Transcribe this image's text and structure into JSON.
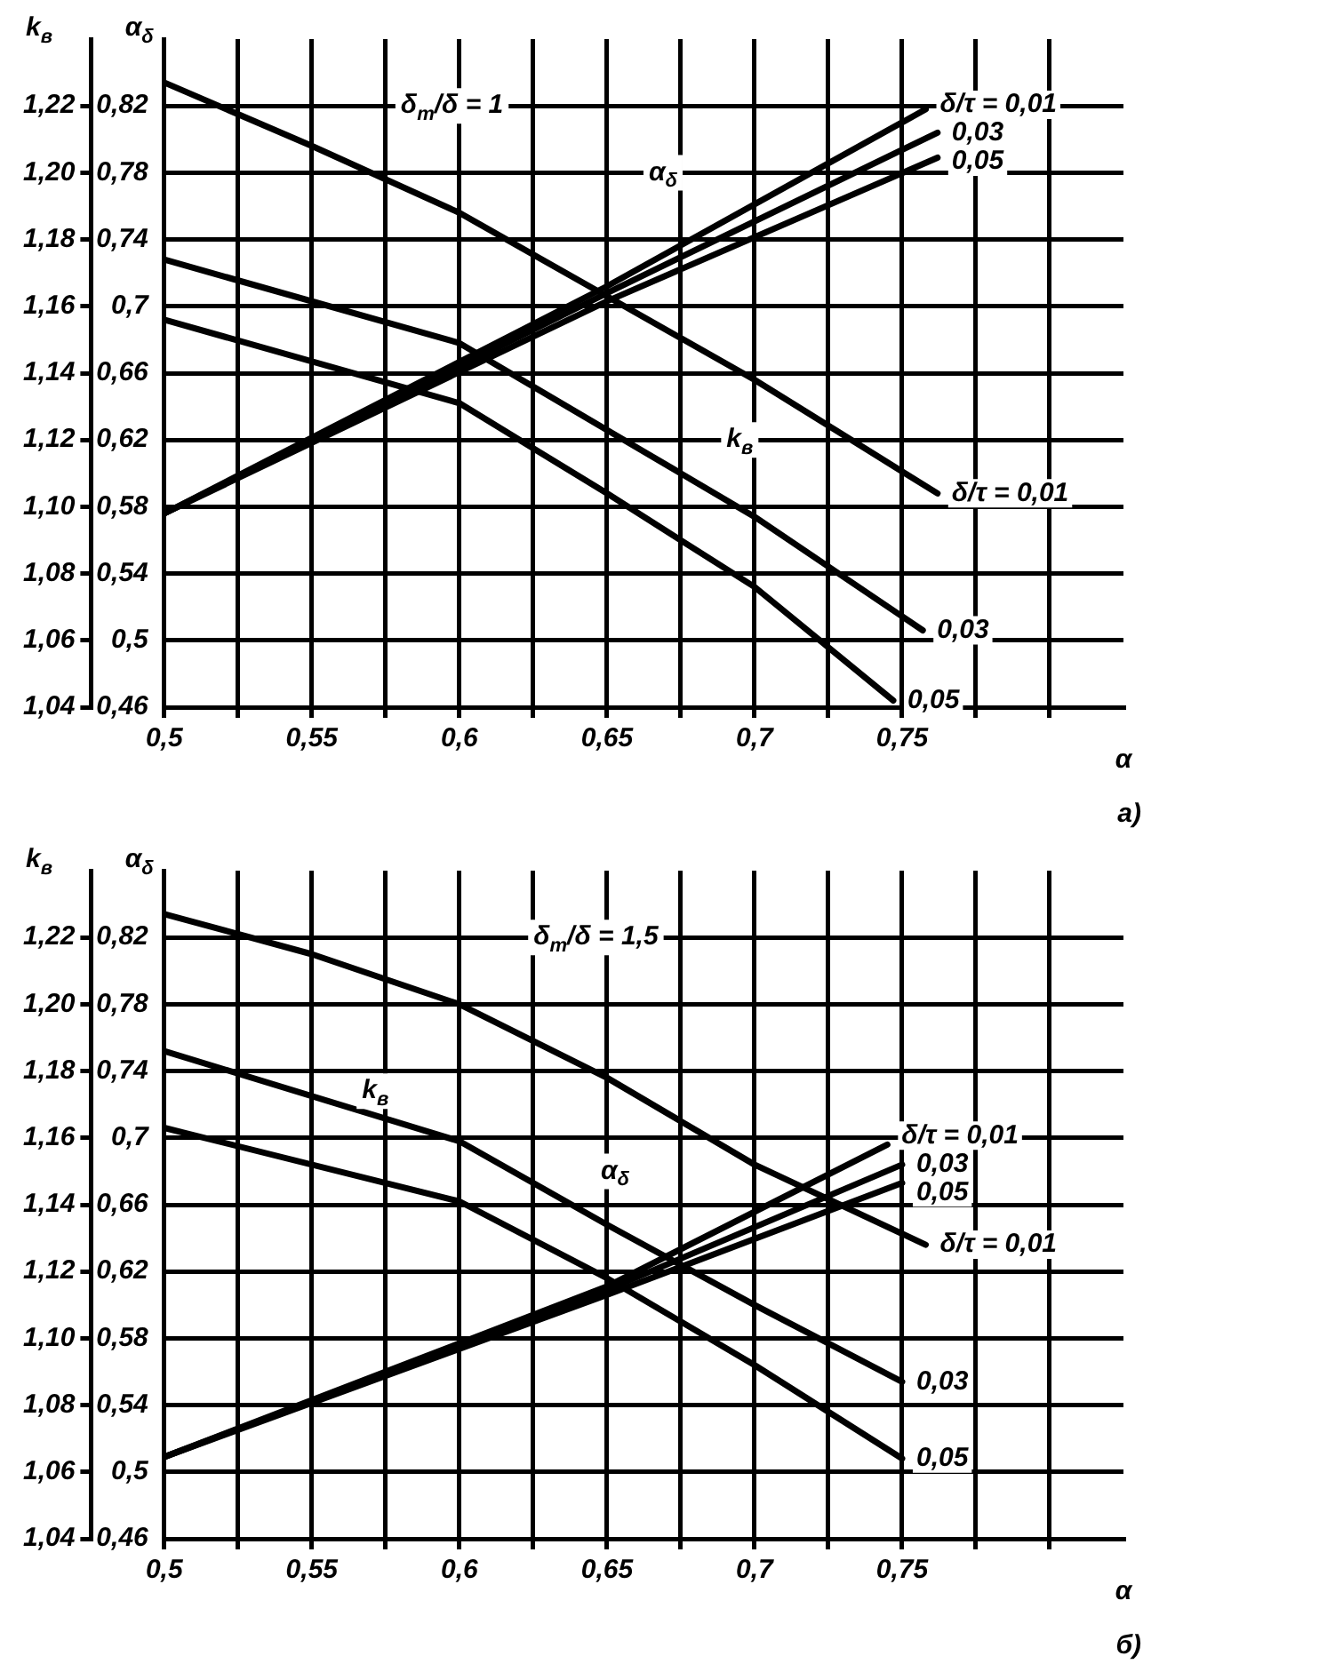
{
  "chart_data": [
    {
      "type": "line",
      "annotations": [
        "δ$_{m}$/δ = 1",
        "k$_{в}$",
        "α$_{δ}$",
        "а)"
      ],
      "xlabel": "α",
      "ylabel": "k$_{в}$",
      "y2label": "α$_{δ}$",
      "grid": true,
      "legend": false,
      "line_style": "solid",
      "xlim": [
        0.5,
        0.825
      ],
      "xticks": [
        {
          "value": 0.5,
          "label": "0,5"
        },
        {
          "value": 0.525,
          "label": null
        },
        {
          "value": 0.55,
          "label": "0,55"
        },
        {
          "value": 0.575,
          "label": null
        },
        {
          "value": 0.6,
          "label": "0,6"
        },
        {
          "value": 0.625,
          "label": null
        },
        {
          "value": 0.65,
          "label": "0,65"
        },
        {
          "value": 0.675,
          "label": null
        },
        {
          "value": 0.7,
          "label": "0,7"
        },
        {
          "value": 0.725,
          "label": null
        },
        {
          "value": 0.75,
          "label": "0,75"
        },
        {
          "value": 0.775,
          "label": null
        },
        {
          "value": 0.8,
          "label": null
        }
      ],
      "ylim": [
        1.04,
        1.24
      ],
      "yticks": [
        {
          "value": 1.04,
          "label": "1,04"
        },
        {
          "value": 1.06,
          "label": "1,06"
        },
        {
          "value": 1.08,
          "label": "1,08"
        },
        {
          "value": 1.1,
          "label": "1,10"
        },
        {
          "value": 1.12,
          "label": "1,12"
        },
        {
          "value": 1.14,
          "label": "1,14"
        },
        {
          "value": 1.16,
          "label": "1,16"
        },
        {
          "value": 1.18,
          "label": "1,18"
        },
        {
          "value": 1.2,
          "label": "1,20"
        },
        {
          "value": 1.22,
          "label": "1,22"
        }
      ],
      "y2lim": [
        0.46,
        0.86
      ],
      "y2ticks": [
        {
          "value": 0.46,
          "label": "0,46"
        },
        {
          "value": 0.5,
          "label": "0,5"
        },
        {
          "value": 0.54,
          "label": "0,54"
        },
        {
          "value": 0.58,
          "label": "0,58"
        },
        {
          "value": 0.62,
          "label": "0,62"
        },
        {
          "value": 0.66,
          "label": "0,66"
        },
        {
          "value": 0.7,
          "label": "0,7"
        },
        {
          "value": 0.74,
          "label": "0,74"
        },
        {
          "value": 0.78,
          "label": "0,78"
        },
        {
          "value": 0.82,
          "label": "0,82"
        }
      ],
      "series": [
        {
          "name": "δ/τ = 0,01",
          "color": "#000000",
          "x": [
            0.5,
            0.55,
            0.6,
            0.65,
            0.7,
            0.762
          ],
          "values": [
            1.227,
            1.208,
            1.188,
            1.163,
            1.138,
            1.104
          ]
        },
        {
          "name": "0,03",
          "color": "#000000",
          "x": [
            0.5,
            0.6,
            0.65,
            0.7,
            0.757
          ],
          "values": [
            1.174,
            1.149,
            1.123,
            1.097,
            1.063
          ]
        },
        {
          "name": "0,05",
          "color": "#000000",
          "x": [
            0.5,
            0.6,
            0.65,
            0.7,
            0.747
          ],
          "values": [
            1.156,
            1.131,
            1.104,
            1.076,
            1.042
          ]
        },
        {
          "name": "δ/τ = 0,01",
          "color": "#000000",
          "axis": "y2",
          "x": [
            0.5,
            0.65,
            0.758
          ],
          "values": [
            0.576,
            0.712,
            0.818
          ]
        },
        {
          "name": "0,03",
          "color": "#000000",
          "axis": "y2",
          "x": [
            0.5,
            0.65,
            0.762
          ],
          "values": [
            0.576,
            0.708,
            0.804
          ]
        },
        {
          "name": "0,05",
          "color": "#000000",
          "axis": "y2",
          "x": [
            0.5,
            0.65,
            0.762
          ],
          "values": [
            0.576,
            0.703,
            0.789
          ]
        }
      ]
    },
    {
      "type": "line",
      "annotations": [
        "δ$_{m}$/δ = 1,5",
        "k$_{в}$",
        "α$_{δ}$",
        "б)"
      ],
      "xlabel": "α",
      "ylabel": "k$_{в}$",
      "y2label": "α$_{δ}$",
      "grid": true,
      "legend": false,
      "line_style": "solid",
      "xlim": [
        0.5,
        0.825
      ],
      "xticks": [
        {
          "value": 0.5,
          "label": "0,5"
        },
        {
          "value": 0.525,
          "label": null
        },
        {
          "value": 0.55,
          "label": "0,55"
        },
        {
          "value": 0.575,
          "label": null
        },
        {
          "value": 0.6,
          "label": "0,6"
        },
        {
          "value": 0.625,
          "label": null
        },
        {
          "value": 0.65,
          "label": "0,65"
        },
        {
          "value": 0.675,
          "label": null
        },
        {
          "value": 0.7,
          "label": "0,7"
        },
        {
          "value": 0.725,
          "label": null
        },
        {
          "value": 0.75,
          "label": "0,75"
        },
        {
          "value": 0.775,
          "label": null
        },
        {
          "value": 0.8,
          "label": null
        }
      ],
      "ylim": [
        1.04,
        1.24
      ],
      "yticks": [
        {
          "value": 1.04,
          "label": "1,04"
        },
        {
          "value": 1.06,
          "label": "1,06"
        },
        {
          "value": 1.08,
          "label": "1,08"
        },
        {
          "value": 1.1,
          "label": "1,10"
        },
        {
          "value": 1.12,
          "label": "1,12"
        },
        {
          "value": 1.14,
          "label": "1,14"
        },
        {
          "value": 1.16,
          "label": "1,16"
        },
        {
          "value": 1.18,
          "label": "1,18"
        },
        {
          "value": 1.2,
          "label": "1,20"
        },
        {
          "value": 1.22,
          "label": "1,22"
        }
      ],
      "y2lim": [
        0.46,
        0.86
      ],
      "y2ticks": [
        {
          "value": 0.46,
          "label": "0,46"
        },
        {
          "value": 0.5,
          "label": "0,5"
        },
        {
          "value": 0.54,
          "label": "0,54"
        },
        {
          "value": 0.58,
          "label": "0,58"
        },
        {
          "value": 0.62,
          "label": "0,62"
        },
        {
          "value": 0.66,
          "label": "0,66"
        },
        {
          "value": 0.7,
          "label": "0,7"
        },
        {
          "value": 0.74,
          "label": "0,74"
        },
        {
          "value": 0.78,
          "label": "0,78"
        },
        {
          "value": 0.82,
          "label": "0,82"
        }
      ],
      "series": [
        {
          "name": "δ/τ = 0,01",
          "color": "#000000",
          "x": [
            0.5,
            0.55,
            0.6,
            0.65,
            0.7,
            0.758
          ],
          "values": [
            1.227,
            1.215,
            1.2,
            1.178,
            1.152,
            1.128
          ]
        },
        {
          "name": "0,03",
          "color": "#000000",
          "x": [
            0.5,
            0.6,
            0.65,
            0.7,
            0.75
          ],
          "values": [
            1.186,
            1.159,
            1.134,
            1.11,
            1.087
          ]
        },
        {
          "name": "0,05",
          "color": "#000000",
          "x": [
            0.5,
            0.6,
            0.65,
            0.7,
            0.75
          ],
          "values": [
            1.163,
            1.141,
            1.118,
            1.092,
            1.064
          ]
        },
        {
          "name": "δ/τ = 0,01",
          "color": "#000000",
          "axis": "y2",
          "x": [
            0.5,
            0.65,
            0.745
          ],
          "values": [
            0.509,
            0.611,
            0.696
          ]
        },
        {
          "name": "0,03",
          "color": "#000000",
          "axis": "y2",
          "x": [
            0.5,
            0.65,
            0.75
          ],
          "values": [
            0.509,
            0.609,
            0.684
          ]
        },
        {
          "name": "0,05",
          "color": "#000000",
          "axis": "y2",
          "x": [
            0.5,
            0.65,
            0.75
          ],
          "values": [
            0.509,
            0.606,
            0.673
          ]
        }
      ]
    }
  ]
}
